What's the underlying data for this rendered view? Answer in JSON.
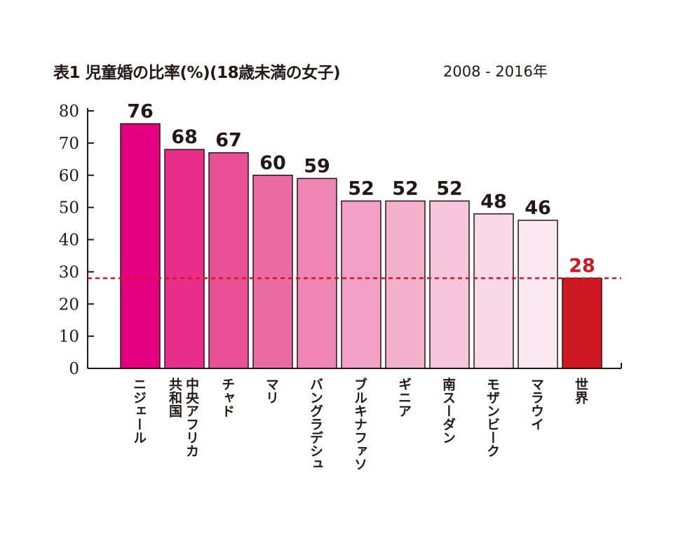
{
  "chart_data": {
    "type": "bar",
    "title": "表1 児童婚の比率(%)(18歳未満の女子)",
    "subtitle": "2008 - 2016年",
    "xlabel": "",
    "ylabel": "",
    "ylim": [
      0,
      80
    ],
    "yticks": [
      "0",
      "10",
      "20",
      "30",
      "40",
      "50",
      "60",
      "70",
      "80"
    ],
    "categories": [
      "ニジェール",
      "中央アフリカ\n共和国",
      "チャド",
      "マリ",
      "バングラデシュ",
      "ブルキナファソ",
      "ギニア",
      "南スーダン",
      "モザンビーク",
      "マラウイ",
      "世界"
    ],
    "values": [
      76,
      68,
      67,
      60,
      59,
      52,
      52,
      52,
      48,
      46,
      28
    ],
    "colors": [
      "#e4007f",
      "#e62e8a",
      "#e94f95",
      "#eb6ba3",
      "#ee85b2",
      "#f19fc2",
      "#f3b1cd",
      "#f6c7dc",
      "#f9d9e8",
      "#fce9f2",
      "#cf1922"
    ],
    "reference_line": {
      "value": 28,
      "color": "#d7141e",
      "style": "dashed"
    },
    "grid": false
  }
}
